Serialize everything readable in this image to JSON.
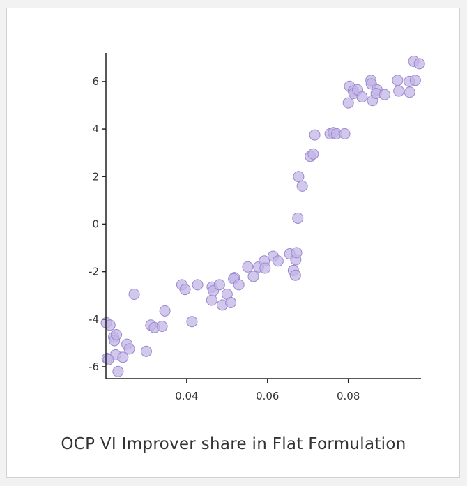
{
  "caption": "OCP VI Improver share in Flat Formulation",
  "colors": {
    "point_fill": "#c3b5e6",
    "point_stroke": "#9b88d2",
    "axis": "#222222",
    "card_border": "#d2d2d2"
  },
  "chart_data": {
    "type": "scatter",
    "title": "",
    "xlabel": "OCP VI Improver share in Flat Formulation",
    "ylabel": "",
    "xlim": [
      0.02,
      0.098
    ],
    "ylim": [
      -6.5,
      7.2
    ],
    "x_ticks": [
      0.04,
      0.06,
      0.08
    ],
    "x_tick_labels": [
      "0.04",
      "0.06",
      "0.08"
    ],
    "y_ticks": [
      -6,
      -4,
      -2,
      0,
      2,
      4,
      6
    ],
    "y_tick_labels": [
      "-6",
      "-4",
      "-2",
      "0",
      "2",
      "4",
      "6"
    ],
    "grid": false,
    "legend": "none",
    "x": [
      0.0201,
      0.021,
      0.0219,
      0.0221,
      0.0224,
      0.0226,
      0.0203,
      0.0206,
      0.023,
      0.0242,
      0.0252,
      0.0258,
      0.027,
      0.03,
      0.0311,
      0.032,
      0.0339,
      0.0346,
      0.0388,
      0.0396,
      0.0413,
      0.0427,
      0.0462,
      0.0463,
      0.0466,
      0.0481,
      0.0488,
      0.05,
      0.0509,
      0.0518,
      0.0516,
      0.0529,
      0.0551,
      0.0565,
      0.0578,
      0.0592,
      0.0594,
      0.0614,
      0.0626,
      0.0655,
      0.0664,
      0.0669,
      0.067,
      0.0672,
      0.0675,
      0.0677,
      0.0686,
      0.0706,
      0.0713,
      0.0717,
      0.0755,
      0.0763,
      0.0771,
      0.0791,
      0.08,
      0.0803,
      0.0812,
      0.0814,
      0.0823,
      0.0834,
      0.0856,
      0.0857,
      0.086,
      0.0871,
      0.0869,
      0.089,
      0.0922,
      0.0925,
      0.0952,
      0.0951,
      0.0962,
      0.0966,
      0.0976
    ],
    "y": [
      -4.15,
      -4.25,
      -4.75,
      -4.9,
      -5.5,
      -4.65,
      -5.65,
      -5.7,
      -6.2,
      -5.6,
      -5.05,
      -5.25,
      -2.95,
      -5.35,
      -4.25,
      -4.35,
      -4.3,
      -3.65,
      -2.55,
      -2.75,
      -4.1,
      -2.55,
      -3.2,
      -2.65,
      -2.8,
      -2.55,
      -3.4,
      -2.95,
      -3.3,
      -2.25,
      -2.3,
      -2.55,
      -1.8,
      -2.2,
      -1.8,
      -1.55,
      -1.85,
      -1.35,
      -1.55,
      -1.25,
      -1.95,
      -2.15,
      -1.5,
      -1.2,
      0.25,
      2.0,
      1.6,
      2.85,
      2.95,
      3.75,
      3.8,
      3.85,
      3.8,
      3.8,
      5.1,
      5.8,
      5.6,
      5.5,
      5.65,
      5.35,
      6.05,
      5.9,
      5.2,
      5.65,
      5.5,
      5.45,
      6.05,
      5.6,
      5.55,
      6.0,
      6.85,
      6.05,
      6.75
    ]
  }
}
